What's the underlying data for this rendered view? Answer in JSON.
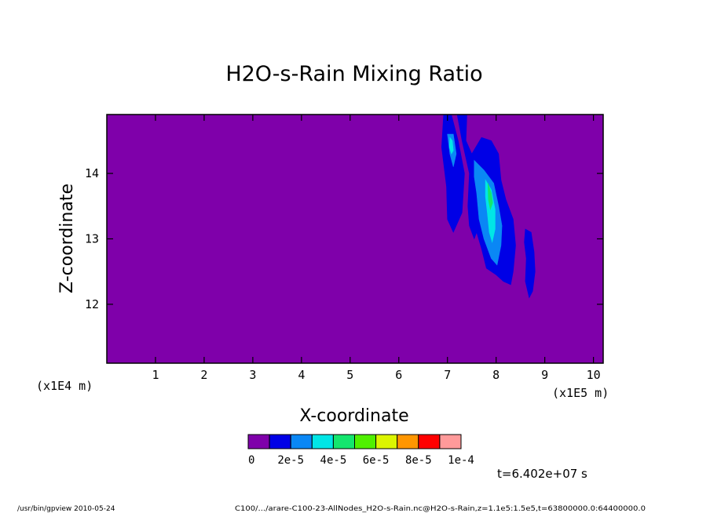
{
  "chart_data": {
    "type": "heatmap",
    "title": "H2O-s-Rain Mixing Ratio",
    "xlabel": "X-coordinate",
    "ylabel": "Z-coordinate",
    "x_unit": "(x1E5 m)",
    "y_unit": "(x1E4 m)",
    "x_ticks": [
      "1",
      "2",
      "3",
      "4",
      "5",
      "6",
      "7",
      "8",
      "9",
      "10"
    ],
    "y_ticks": [
      "12",
      "13",
      "14"
    ],
    "xlim": [
      0.0,
      10.2
    ],
    "ylim": [
      11.1,
      14.9
    ],
    "colorbar": {
      "colors": [
        "#7f00aa",
        "#0000e6",
        "#0a87f5",
        "#00e6e6",
        "#14e66e",
        "#50f000",
        "#dcf500",
        "#ff9600",
        "#ff0000",
        "#ff9a9a"
      ],
      "labels": [
        "0",
        "2e-5",
        "4e-5",
        "6e-5",
        "8e-5",
        "1e-4"
      ]
    },
    "background_level": 0,
    "features": [
      {
        "level": 1,
        "polygon": [
          [
            6.92,
            14.9
          ],
          [
            7.08,
            14.9
          ],
          [
            7.22,
            14.5
          ],
          [
            7.35,
            14.0
          ],
          [
            7.3,
            13.4
          ],
          [
            7.12,
            13.1
          ],
          [
            7.0,
            13.3
          ],
          [
            6.98,
            13.8
          ],
          [
            6.88,
            14.4
          ]
        ]
      },
      {
        "level": 1,
        "polygon": [
          [
            7.2,
            14.9
          ],
          [
            7.4,
            14.9
          ],
          [
            7.38,
            14.5
          ],
          [
            7.5,
            14.3
          ],
          [
            7.7,
            14.55
          ],
          [
            7.9,
            14.5
          ],
          [
            8.05,
            14.3
          ],
          [
            8.1,
            13.9
          ],
          [
            8.2,
            13.6
          ],
          [
            8.35,
            13.3
          ],
          [
            8.4,
            12.9
          ],
          [
            8.35,
            12.5
          ],
          [
            8.3,
            12.3
          ],
          [
            8.15,
            12.35
          ],
          [
            8.0,
            12.45
          ],
          [
            7.8,
            12.55
          ],
          [
            7.7,
            12.85
          ],
          [
            7.6,
            13.1
          ],
          [
            7.55,
            13.0
          ],
          [
            7.45,
            13.2
          ],
          [
            7.42,
            13.5
          ],
          [
            7.45,
            14.0
          ],
          [
            7.3,
            14.5
          ]
        ]
      },
      {
        "level": 1,
        "polygon": [
          [
            8.6,
            13.15
          ],
          [
            8.72,
            13.1
          ],
          [
            8.78,
            12.8
          ],
          [
            8.8,
            12.5
          ],
          [
            8.75,
            12.2
          ],
          [
            8.68,
            12.1
          ],
          [
            8.6,
            12.35
          ],
          [
            8.62,
            12.7
          ],
          [
            8.58,
            12.95
          ]
        ]
      },
      {
        "level": 2,
        "polygon": [
          [
            7.0,
            14.6
          ],
          [
            7.12,
            14.6
          ],
          [
            7.18,
            14.3
          ],
          [
            7.12,
            14.1
          ],
          [
            7.05,
            14.3
          ]
        ]
      },
      {
        "level": 2,
        "polygon": [
          [
            7.55,
            14.2
          ],
          [
            7.75,
            14.05
          ],
          [
            7.95,
            13.85
          ],
          [
            8.05,
            13.5
          ],
          [
            8.12,
            13.2
          ],
          [
            8.1,
            12.9
          ],
          [
            8.02,
            12.6
          ],
          [
            7.9,
            12.7
          ],
          [
            7.75,
            13.0
          ],
          [
            7.65,
            13.3
          ],
          [
            7.6,
            13.7
          ],
          [
            7.55,
            13.95
          ]
        ]
      },
      {
        "level": 3,
        "polygon": [
          [
            7.05,
            14.55
          ],
          [
            7.1,
            14.5
          ],
          [
            7.12,
            14.35
          ],
          [
            7.08,
            14.3
          ],
          [
            7.04,
            14.4
          ]
        ]
      },
      {
        "level": 3,
        "polygon": [
          [
            7.78,
            13.9
          ],
          [
            7.9,
            13.75
          ],
          [
            7.98,
            13.45
          ],
          [
            7.98,
            13.15
          ],
          [
            7.92,
            12.95
          ],
          [
            7.86,
            13.1
          ],
          [
            7.82,
            13.4
          ],
          [
            7.78,
            13.65
          ]
        ]
      },
      {
        "level": 4,
        "polygon": [
          [
            7.83,
            13.85
          ],
          [
            7.9,
            13.7
          ],
          [
            7.93,
            13.55
          ],
          [
            7.88,
            13.45
          ],
          [
            7.84,
            13.6
          ]
        ]
      }
    ]
  },
  "time_label": "t=6.402e+07 s",
  "footer": {
    "left": "/usr/bin/gpview  2010-05-24",
    "right": "C100/.../arare-C100-23-AllNodes_H2O-s-Rain.nc@H2O-s-Rain,z=1.1e5:1.5e5,t=63800000.0:64400000.0"
  }
}
